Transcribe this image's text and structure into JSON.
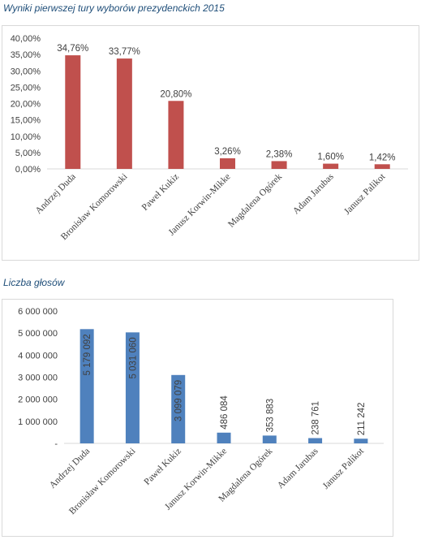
{
  "charts": [
    {
      "title": "Wyniki pierwszej tury wyborów prezydenckich 2015",
      "chart_data": {
        "type": "bar",
        "categories": [
          "Andrzej Duda",
          "Bronisław Komorowski",
          "Paweł Kukiz",
          "Janusz Korwin-Mikke",
          "Magdalena Ogórek",
          "Adam Jarubas",
          "Janusz Palikot"
        ],
        "values": [
          34.76,
          33.77,
          20.8,
          3.26,
          2.38,
          1.6,
          1.42
        ],
        "data_labels": [
          "34,76%",
          "33,77%",
          "20,80%",
          "3,26%",
          "2,38%",
          "1,60%",
          "1,42%"
        ],
        "y_ticks": [
          "0,00%",
          "5,00%",
          "10,00%",
          "15,00%",
          "20,00%",
          "25,00%",
          "30,00%",
          "35,00%",
          "40,00%"
        ],
        "ylim": [
          0,
          40
        ],
        "color": "#c0504d",
        "grid": false
      }
    },
    {
      "title": "Liczba głosów",
      "chart_data": {
        "type": "bar",
        "categories": [
          "Andrzej Duda",
          "Bronisław Komorowski",
          "Paweł Kukiz",
          "Janusz Korwin-Mikke",
          "Magdalena Ogórek",
          "Adam Jarubas",
          "Janusz Palikot"
        ],
        "values": [
          5179092,
          5031060,
          3099079,
          486084,
          353883,
          238761,
          211242
        ],
        "data_labels": [
          "5 179 092",
          "5 031 060",
          "3 099 079",
          "486 084",
          "353 883",
          "238 761",
          "211 242"
        ],
        "y_ticks": [
          "-",
          "1 000 000",
          "2 000 000",
          "3 000 000",
          "4 000 000",
          "5 000 000",
          "6 000 000"
        ],
        "ylim": [
          0,
          6000000
        ],
        "color": "#4f81bd",
        "grid": false
      }
    }
  ]
}
